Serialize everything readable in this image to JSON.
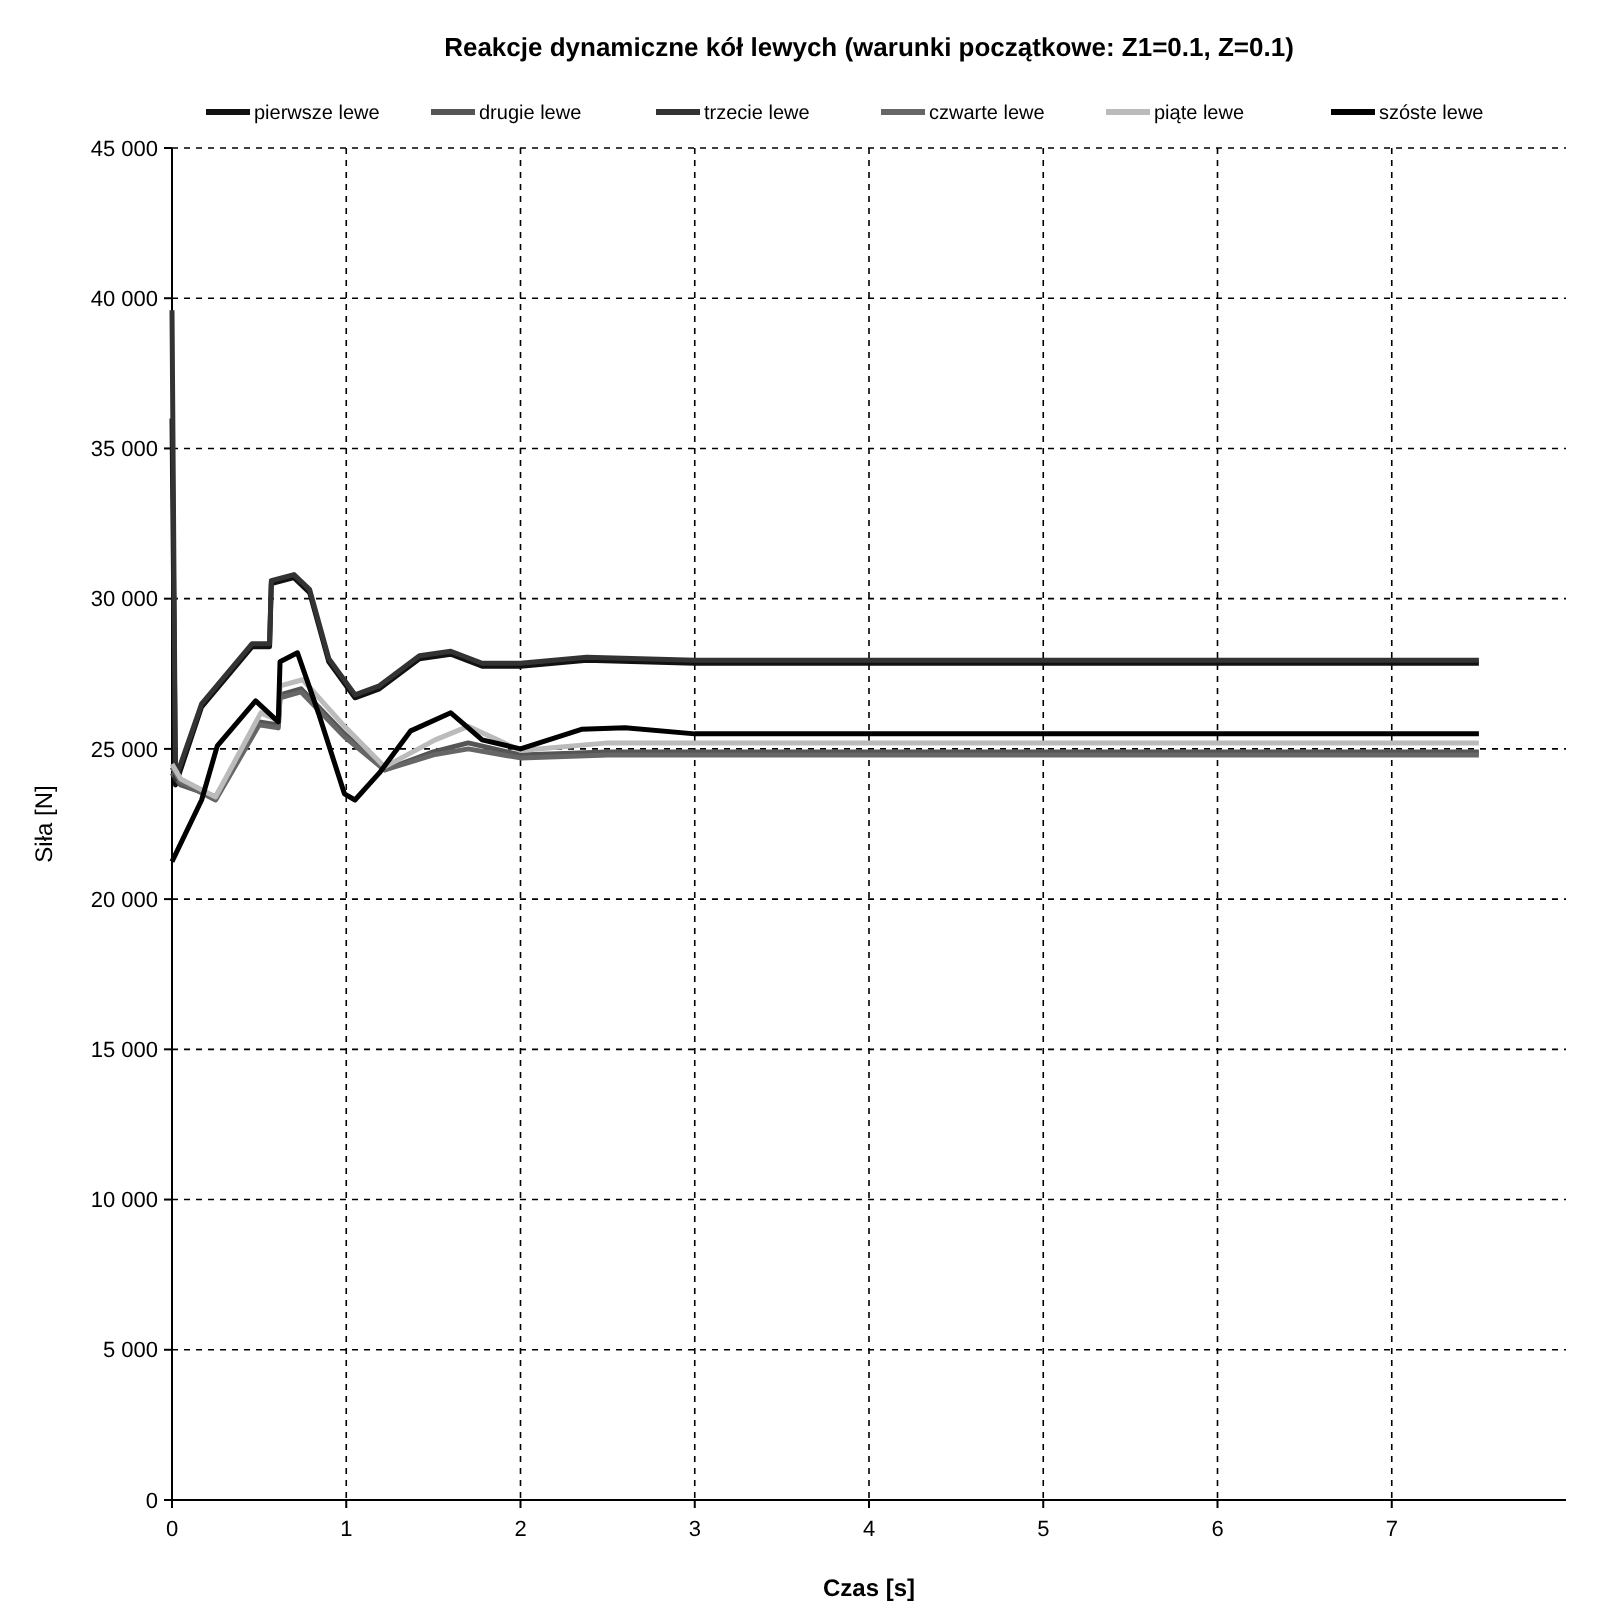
{
  "chart_data": {
    "type": "line",
    "title": "Reakcje dynamiczne kół lewych (warunki początkowe: Z1=0.1, Z=0.1)",
    "xlabel": "Czas [s]",
    "ylabel": "Siła [N]",
    "xlim": [
      0,
      8
    ],
    "xticks": [
      0,
      1,
      2,
      3,
      4,
      5,
      6,
      7
    ],
    "ylim": [
      0,
      45000
    ],
    "yticks": [
      {
        "value": 0,
        "label": "0"
      },
      {
        "value": 5000,
        "label": "5 000"
      },
      {
        "value": 10000,
        "label": "10 000"
      },
      {
        "value": 15000,
        "label": "15 000"
      },
      {
        "value": 20000,
        "label": "20 000"
      },
      {
        "value": 25000,
        "label": "25 000"
      },
      {
        "value": 30000,
        "label": "30 000"
      },
      {
        "value": 35000,
        "label": "35 000"
      },
      {
        "value": 40000,
        "label": "40 000"
      },
      {
        "value": 45000,
        "label": "45 000"
      }
    ],
    "grid": true,
    "legend": "top",
    "line_style": "solid",
    "marker": "none",
    "series": [
      {
        "name": "pierwsze lewe",
        "color": "#111111",
        "x": [
          0,
          0.02,
          0.17,
          0.46,
          0.56,
          0.57,
          0.7,
          0.79,
          0.9,
          1.05,
          1.19,
          1.42,
          1.6,
          1.78,
          2.0,
          2.38,
          3,
          7.5
        ],
        "values": [
          36000,
          23800,
          26400,
          28400,
          28400,
          30500,
          30700,
          30200,
          27900,
          26700,
          27000,
          28000,
          28150,
          27750,
          27750,
          27950,
          27850,
          27850
        ]
      },
      {
        "name": "drugie lewe",
        "color": "#555555",
        "x": [
          0,
          0.05,
          0.25,
          0.5,
          0.61,
          0.62,
          0.74,
          0.99,
          1.22,
          1.5,
          1.7,
          2.0,
          2.5,
          7.5
        ],
        "values": [
          24200,
          23800,
          23400,
          25900,
          25800,
          26800,
          27000,
          25500,
          24300,
          24900,
          25200,
          24800,
          24900,
          24900
        ]
      },
      {
        "name": "trzecie lewe",
        "color": "#333333",
        "x": [
          0,
          0.02,
          0.17,
          0.46,
          0.56,
          0.57,
          0.7,
          0.79,
          0.9,
          1.05,
          1.19,
          1.42,
          1.6,
          1.78,
          2.0,
          2.38,
          3,
          7.5
        ],
        "values": [
          39600,
          24000,
          26500,
          28500,
          28500,
          30600,
          30800,
          30300,
          28000,
          26800,
          27100,
          28100,
          28250,
          27850,
          27850,
          28050,
          27950,
          27950
        ]
      },
      {
        "name": "czwarte lewe",
        "color": "#666666",
        "x": [
          0,
          0.05,
          0.25,
          0.5,
          0.61,
          0.62,
          0.74,
          0.99,
          1.22,
          1.5,
          1.7,
          2.0,
          2.5,
          7.5
        ],
        "values": [
          24400,
          23900,
          23300,
          25800,
          25700,
          26700,
          26900,
          25400,
          24300,
          24800,
          25000,
          24700,
          24800,
          24800
        ]
      },
      {
        "name": "piąte lewe",
        "color": "#bbbbbb",
        "x": [
          0,
          0.05,
          0.25,
          0.51,
          0.61,
          0.62,
          0.75,
          0.99,
          1.22,
          1.51,
          1.7,
          2.0,
          2.5,
          7.5
        ],
        "values": [
          24500,
          24000,
          23400,
          26200,
          25950,
          27100,
          27300,
          25750,
          24400,
          25300,
          25750,
          24950,
          25200,
          25200
        ]
      },
      {
        "name": "szóste lewe",
        "color": "#000000",
        "x": [
          0,
          0.17,
          0.26,
          0.48,
          0.61,
          0.62,
          0.72,
          0.84,
          0.99,
          1.05,
          1.19,
          1.37,
          1.6,
          1.78,
          2.0,
          2.35,
          2.6,
          3,
          7.5
        ],
        "values": [
          21250,
          23300,
          25100,
          26600,
          25900,
          27900,
          28200,
          26200,
          23500,
          23300,
          24200,
          25600,
          26200,
          25300,
          25000,
          25650,
          25700,
          25500,
          25500
        ]
      }
    ]
  }
}
